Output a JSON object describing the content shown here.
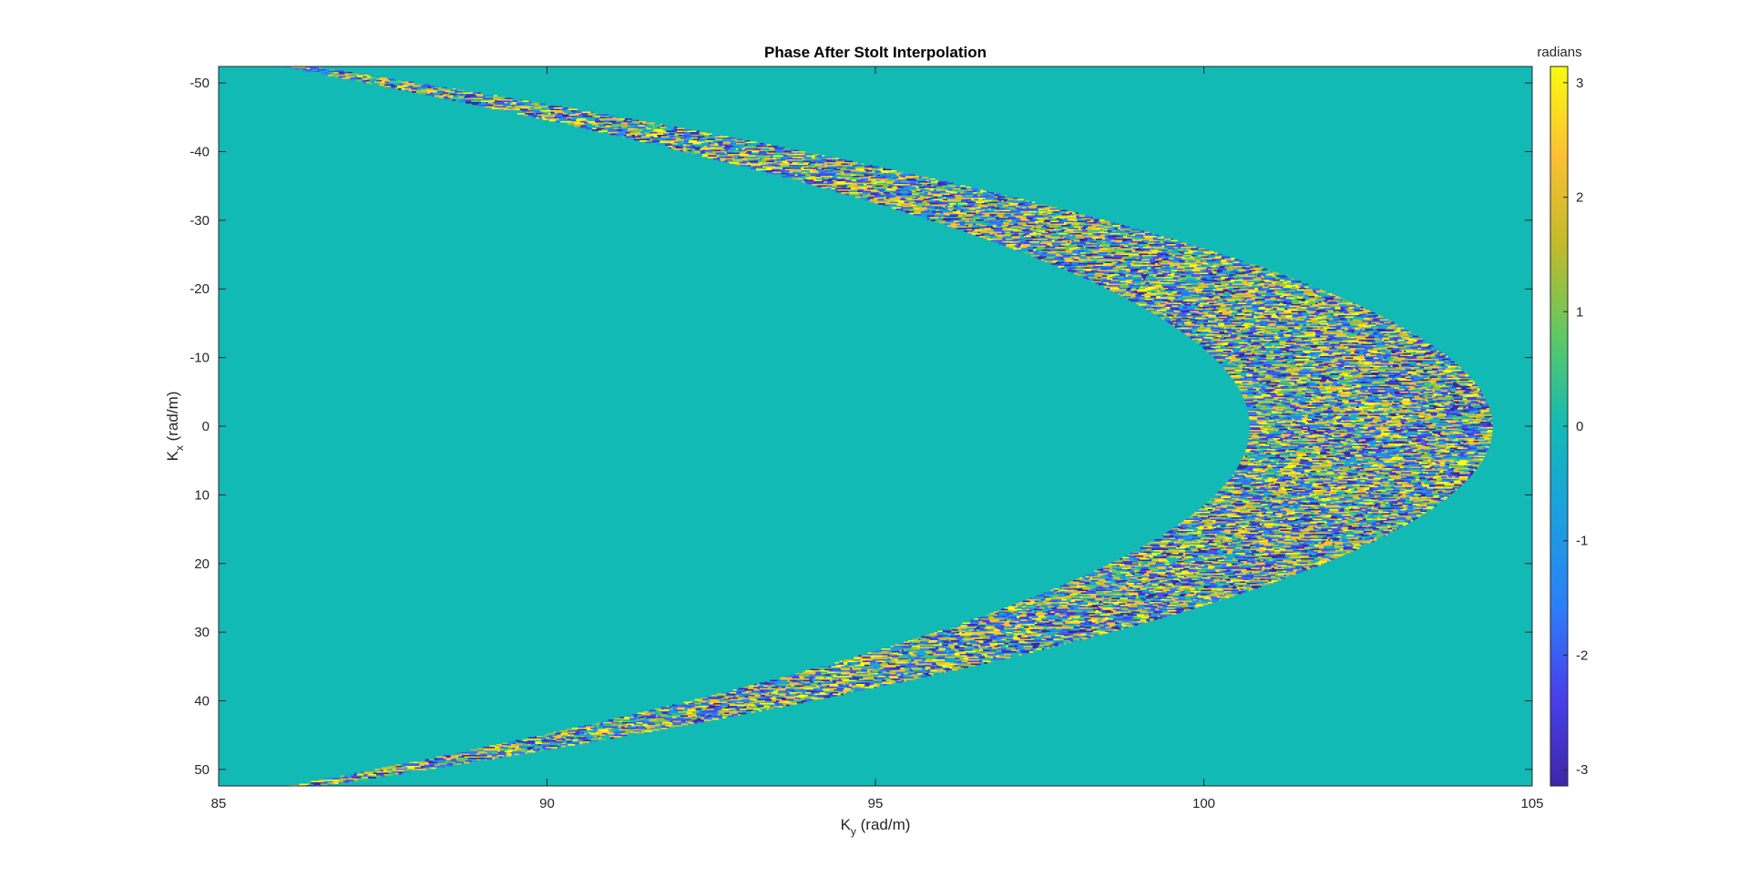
{
  "chart_data": {
    "type": "heatmap",
    "title": "Phase After Stolt Interpolation",
    "xlabel": {
      "main": "K",
      "sub": "y",
      "unit": " (rad/m)"
    },
    "ylabel": {
      "main": "K",
      "sub": "x",
      "unit": " (rad/m)"
    },
    "xlim": [
      85,
      105
    ],
    "ylim": [
      -52.4,
      52.4
    ],
    "y_reversed": true,
    "x_ticks": [
      85,
      90,
      95,
      100,
      105
    ],
    "y_ticks": [
      -50,
      -40,
      -30,
      -20,
      -10,
      0,
      10,
      20,
      30,
      40,
      50
    ],
    "colorbar": {
      "label": "radians",
      "colormap": "parula",
      "clim": [
        -3.14159,
        3.14159
      ],
      "ticks": [
        -3,
        -2,
        -1,
        0,
        1,
        2,
        3
      ]
    },
    "data_description": {
      "background_phase": 0,
      "nonzero_region": "parabolic band opening to the left",
      "inner_boundary_vertex_ky": 100.7,
      "outer_boundary_vertex_ky": 104.4,
      "inner_boundary_ky_at_kx_edge": 86.0,
      "outer_boundary_ky_at_kx_edge": 86.5
    }
  }
}
